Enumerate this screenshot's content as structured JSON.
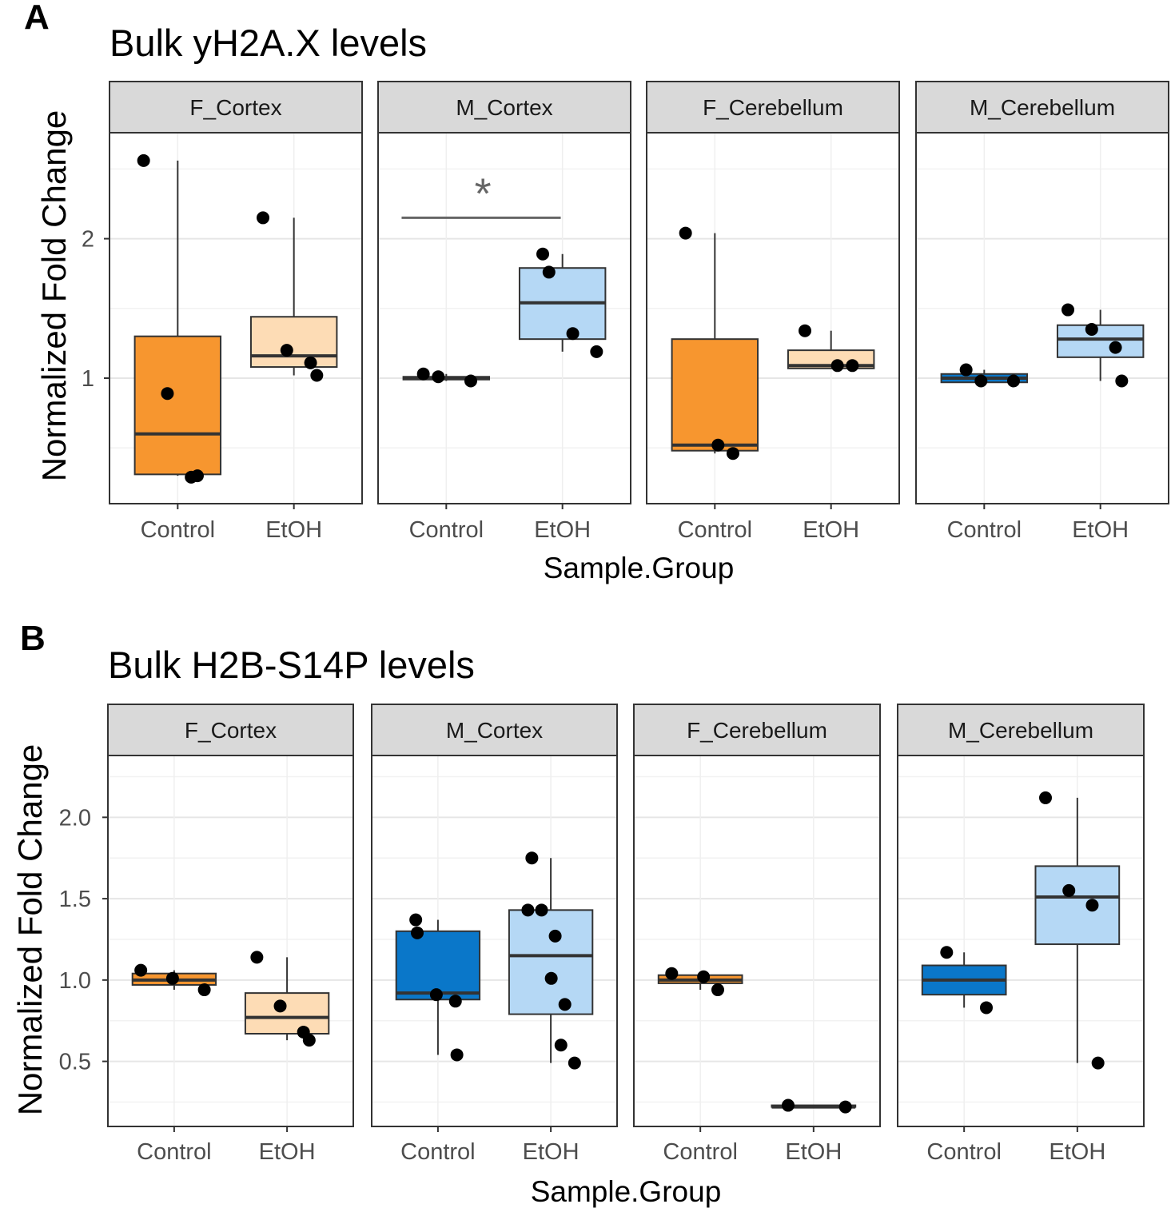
{
  "figure": {
    "panel_labels": [
      "A",
      "B"
    ]
  },
  "chart_data": [
    {
      "type": "box",
      "panel_label": "A",
      "title": "Bulk yH2A.X levels",
      "xlabel": "Sample.Group",
      "ylabel": "Normalized Fold Change",
      "ylim": [
        0.1,
        2.76
      ],
      "yticks": [
        1,
        2
      ],
      "ytick_labels": [
        "1",
        "2"
      ],
      "categories": [
        "Control",
        "EtOH"
      ],
      "grid": true,
      "colors": {
        "F_control": "#f7962f",
        "F_etoh": "#fddcb5",
        "M_control": "#0a77c9",
        "M_etoh": "#b5d8f5"
      },
      "facets": [
        {
          "name": "F_Cortex",
          "sex": "F",
          "groups": [
            {
              "name": "Control",
              "min": 0.3,
              "q1": 0.31,
              "median": 0.6,
              "q3": 1.3,
              "max": 2.56,
              "points": [
                2.56,
                0.89,
                0.29,
                0.3
              ]
            },
            {
              "name": "EtOH",
              "min": 1.02,
              "q1": 1.08,
              "median": 1.16,
              "q3": 1.44,
              "max": 2.15,
              "points": [
                2.15,
                1.2,
                1.11,
                1.02
              ]
            }
          ]
        },
        {
          "name": "M_Cortex",
          "sex": "M",
          "groups": [
            {
              "name": "Control",
              "min": 0.98,
              "q1": 0.99,
              "median": 1.0,
              "q3": 1.01,
              "max": 1.03,
              "points": [
                1.03,
                1.01,
                0.98
              ]
            },
            {
              "name": "EtOH",
              "min": 1.19,
              "q1": 1.28,
              "median": 1.54,
              "q3": 1.79,
              "max": 1.89,
              "points": [
                1.89,
                1.76,
                1.32,
                1.19
              ]
            }
          ],
          "significance": {
            "label": "*",
            "value": 2.15
          }
        },
        {
          "name": "F_Cerebellum",
          "sex": "F",
          "groups": [
            {
              "name": "Control",
              "min": 0.46,
              "q1": 0.48,
              "median": 0.52,
              "q3": 1.28,
              "max": 2.04,
              "points": [
                2.04,
                0.52,
                0.46
              ]
            },
            {
              "name": "EtOH",
              "min": 1.07,
              "q1": 1.07,
              "median": 1.09,
              "q3": 1.2,
              "max": 1.34,
              "points": [
                1.34,
                1.09,
                1.09
              ]
            }
          ]
        },
        {
          "name": "M_Cerebellum",
          "sex": "M",
          "groups": [
            {
              "name": "Control",
              "min": 0.97,
              "q1": 0.97,
              "median": 1.0,
              "q3": 1.03,
              "max": 1.06,
              "points": [
                1.06,
                0.98,
                0.98
              ]
            },
            {
              "name": "EtOH",
              "min": 0.98,
              "q1": 1.15,
              "median": 1.28,
              "q3": 1.38,
              "max": 1.49,
              "points": [
                1.49,
                1.35,
                1.22,
                0.98
              ]
            }
          ]
        }
      ]
    },
    {
      "type": "box",
      "panel_label": "B",
      "title": "Bulk H2B-S14P levels",
      "xlabel": "Sample.Group",
      "ylabel": "Normalized Fold Change",
      "ylim": [
        0.1,
        2.38
      ],
      "yticks": [
        0.5,
        1.0,
        1.5,
        2.0
      ],
      "ytick_labels": [
        "0.5",
        "1.0",
        "1.5",
        "2.0"
      ],
      "categories": [
        "Control",
        "EtOH"
      ],
      "grid": true,
      "colors": {
        "F_control": "#f7962f",
        "F_etoh": "#fddcb5",
        "M_control": "#0a77c9",
        "M_etoh": "#b5d8f5"
      },
      "facets": [
        {
          "name": "F_Cortex",
          "sex": "F",
          "groups": [
            {
              "name": "Control",
              "min": 0.94,
              "q1": 0.97,
              "median": 1.0,
              "q3": 1.04,
              "max": 1.06,
              "points": [
                1.06,
                1.01,
                0.94
              ]
            },
            {
              "name": "EtOH",
              "min": 0.63,
              "q1": 0.67,
              "median": 0.77,
              "q3": 0.92,
              "max": 1.14,
              "points": [
                1.14,
                0.84,
                0.68,
                0.63
              ]
            }
          ]
        },
        {
          "name": "M_Cortex",
          "sex": "M",
          "groups": [
            {
              "name": "Control",
              "min": 0.54,
              "q1": 0.88,
              "median": 0.92,
              "q3": 1.3,
              "max": 1.37,
              "points": [
                1.37,
                1.29,
                0.91,
                0.87,
                0.54
              ]
            },
            {
              "name": "EtOH",
              "min": 0.49,
              "q1": 0.79,
              "median": 1.15,
              "q3": 1.43,
              "max": 1.75,
              "points": [
                1.75,
                1.43,
                1.43,
                1.27,
                1.01,
                0.85,
                0.6,
                0.49
              ]
            }
          ]
        },
        {
          "name": "F_Cerebellum",
          "sex": "F",
          "groups": [
            {
              "name": "Control",
              "min": 0.94,
              "q1": 0.98,
              "median": 1.0,
              "q3": 1.03,
              "max": 1.04,
              "points": [
                1.04,
                1.02,
                0.94
              ]
            },
            {
              "name": "EtOH",
              "min": 0.22,
              "q1": 0.22,
              "median": 0.22,
              "q3": 0.23,
              "max": 0.23,
              "points": [
                0.23,
                0.22
              ]
            }
          ]
        },
        {
          "name": "M_Cerebellum",
          "sex": "M",
          "groups": [
            {
              "name": "Control",
              "min": 0.83,
              "q1": 0.91,
              "median": 1.0,
              "q3": 1.09,
              "max": 1.17,
              "points": [
                1.17,
                0.83
              ]
            },
            {
              "name": "EtOH",
              "min": 0.49,
              "q1": 1.22,
              "median": 1.51,
              "q3": 1.7,
              "max": 2.12,
              "points": [
                2.12,
                1.55,
                1.46,
                0.49
              ]
            }
          ]
        }
      ]
    }
  ]
}
